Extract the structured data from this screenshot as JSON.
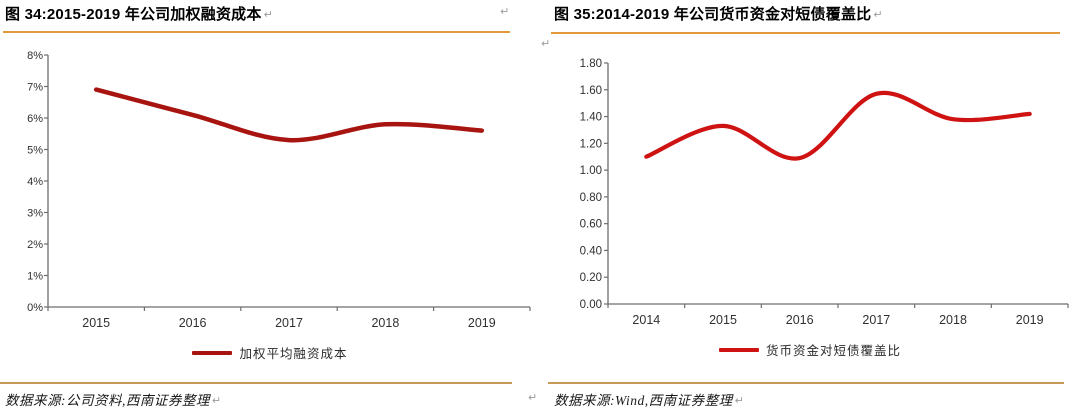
{
  "marks": {
    "paragraph_mark": "↵"
  },
  "colors": {
    "title_rule": "#E2993B",
    "bottom_rule": "#C89A58",
    "axis": "#6E6E6E",
    "tick_text": "#303030",
    "left_line": "#A81511",
    "right_line": "#CE1312"
  },
  "left_panel": {
    "title": "图 34:2015-2019 年公司加权融资成本",
    "legend_label": "加权平均融资成本",
    "source": "数据来源:公司资料,西南证券整理"
  },
  "right_panel": {
    "title": "图 35:2014-2019 年公司货币资金对短债覆盖比",
    "legend_label": "货币资金对短债覆盖比",
    "source": "数据来源:Wind,西南证券整理"
  },
  "chart_data": [
    {
      "type": "line",
      "title": "2015-2019 年公司加权融资成本",
      "categories": [
        "2015",
        "2016",
        "2017",
        "2018",
        "2019"
      ],
      "series": [
        {
          "name": "加权平均融资成本",
          "values": [
            6.9,
            6.1,
            5.3,
            5.8,
            5.6
          ]
        }
      ],
      "ylabel": "",
      "xlabel": "",
      "ylim": [
        0,
        8
      ],
      "ytick_labels": [
        "0%",
        "1%",
        "2%",
        "3%",
        "4%",
        "5%",
        "6%",
        "7%",
        "8%"
      ],
      "grid": false,
      "smooth": true,
      "legend_position": "bottom",
      "line_color": "#A81511"
    },
    {
      "type": "line",
      "title": "2014-2019 年公司货币资金对短债覆盖比",
      "categories": [
        "2014",
        "2015",
        "2016",
        "2017",
        "2018",
        "2019"
      ],
      "series": [
        {
          "name": "货币资金对短债覆盖比",
          "values": [
            1.1,
            1.33,
            1.09,
            1.57,
            1.38,
            1.42
          ]
        }
      ],
      "ylabel": "",
      "xlabel": "",
      "ylim": [
        0,
        1.8
      ],
      "ytick_labels": [
        "0.00",
        "0.20",
        "0.40",
        "0.60",
        "0.80",
        "1.00",
        "1.20",
        "1.40",
        "1.60",
        "1.80"
      ],
      "grid": false,
      "smooth": true,
      "legend_position": "bottom",
      "line_color": "#CE1312"
    }
  ]
}
